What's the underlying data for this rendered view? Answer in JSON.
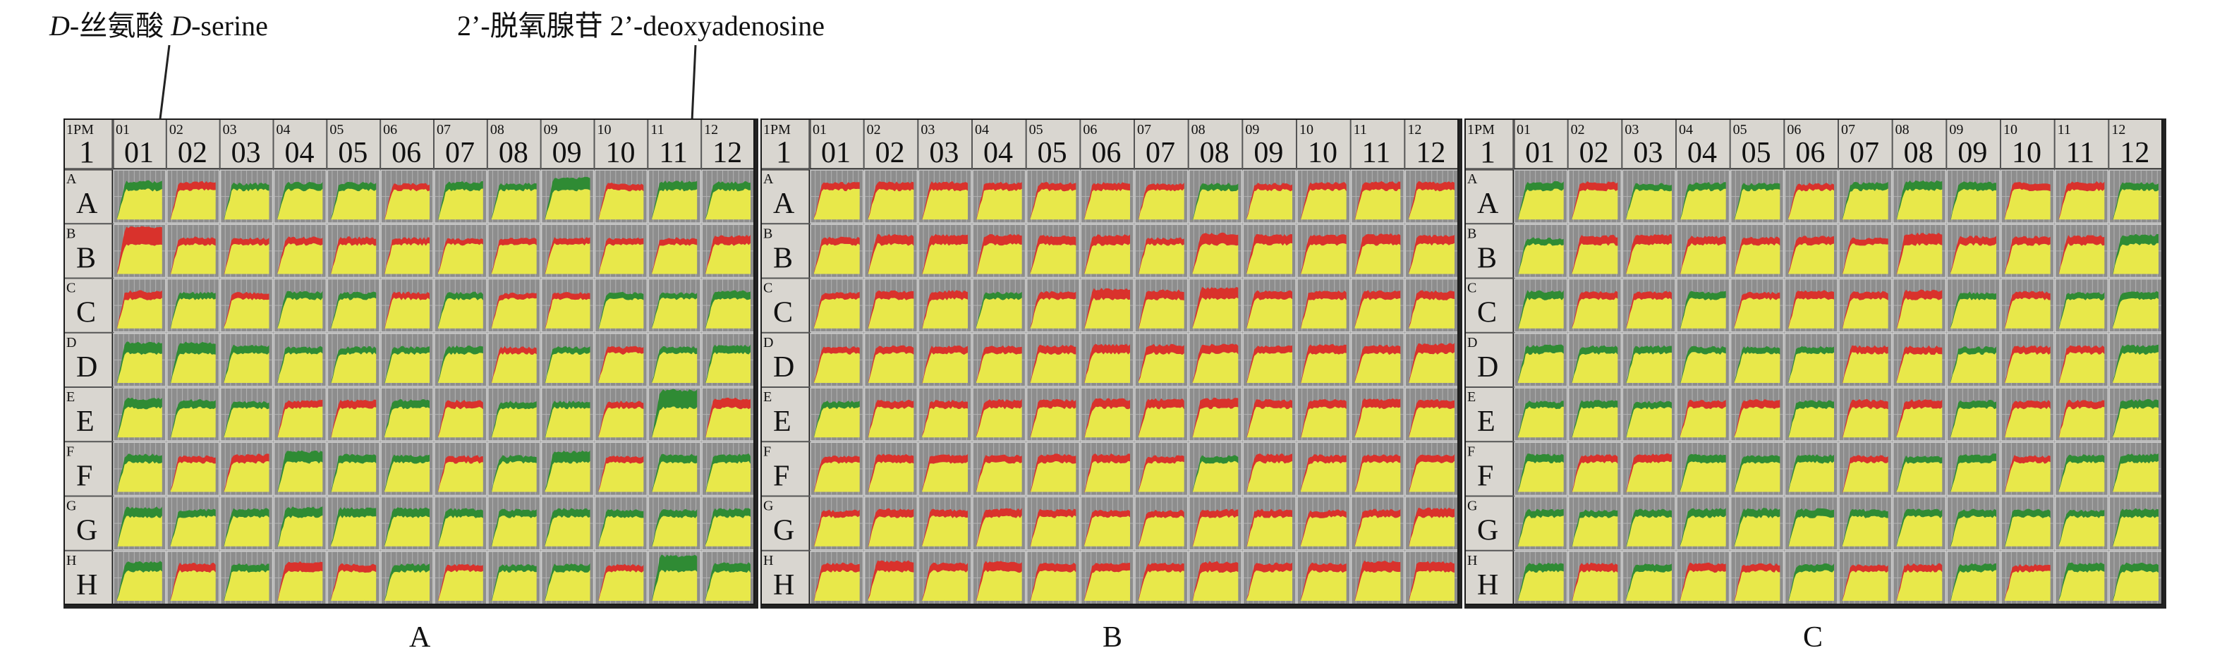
{
  "figure": {
    "annotations": [
      {
        "id": "d-serine",
        "italic_prefix": "D",
        "text": "-丝氨酸 ",
        "italic_prefix2": "D",
        "text2": "-serine",
        "plate": "A",
        "row": "B",
        "col": "01"
      },
      {
        "id": "deoxyadenosine",
        "text": "2’-脱氧腺苷 2’-deoxyadenosine",
        "plate": "A",
        "row": "E",
        "col": "11"
      }
    ],
    "corner": {
      "small": "1PM",
      "big": "1"
    },
    "columns": [
      {
        "small": "01",
        "big": "01"
      },
      {
        "small": "02",
        "big": "02"
      },
      {
        "small": "03",
        "big": "03"
      },
      {
        "small": "04",
        "big": "04"
      },
      {
        "small": "05",
        "big": "05"
      },
      {
        "small": "06",
        "big": "06"
      },
      {
        "small": "07",
        "big": "07"
      },
      {
        "small": "08",
        "big": "08"
      },
      {
        "small": "09",
        "big": "09"
      },
      {
        "small": "10",
        "big": "10"
      },
      {
        "small": "11",
        "big": "11"
      },
      {
        "small": "12",
        "big": "12"
      }
    ],
    "rows": [
      {
        "small": "A",
        "big": "A"
      },
      {
        "small": "B",
        "big": "B"
      },
      {
        "small": "C",
        "big": "C"
      },
      {
        "small": "D",
        "big": "D"
      },
      {
        "small": "E",
        "big": "E"
      },
      {
        "small": "F",
        "big": "F"
      },
      {
        "small": "G",
        "big": "G"
      },
      {
        "small": "H",
        "big": "H"
      }
    ],
    "colors": {
      "frame": "#d9d6d0",
      "cell_bg": "#8d8d8d",
      "gridline": "#b3b3b3",
      "common": "#e8e84a",
      "red": "#d9322c",
      "green": "#2f8b34",
      "border": "#1a1a1a"
    }
  },
  "chart_data": {
    "type": "heatmap",
    "description_of_encoding": "Phenotype MicroArray PM1 kinetic curves; yellow = shared signal, red band = higher in reference, green band = higher in comparison; value = relative band thickness (0-1), sign: positive red, negative green",
    "plates": [
      {
        "label": "A",
        "rows": [
          "A",
          "B",
          "C",
          "D",
          "E",
          "F",
          "G",
          "H"
        ],
        "cols": [
          "01",
          "02",
          "03",
          "04",
          "05",
          "06",
          "07",
          "08",
          "09",
          "10",
          "11",
          "12"
        ],
        "values": [
          [
            -0.35,
            0.3,
            -0.2,
            -0.25,
            -0.25,
            0.2,
            -0.3,
            -0.2,
            -0.6,
            0.2,
            -0.35,
            -0.3
          ],
          [
            0.95,
            0.25,
            0.2,
            0.25,
            0.25,
            0.2,
            0.15,
            0.2,
            0.2,
            0.2,
            0.2,
            0.35
          ],
          [
            0.3,
            -0.2,
            0.2,
            -0.25,
            -0.2,
            0.2,
            -0.2,
            0.15,
            0.2,
            -0.2,
            -0.15,
            -0.3
          ],
          [
            -0.5,
            -0.5,
            -0.3,
            -0.2,
            -0.2,
            -0.2,
            -0.25,
            0.2,
            -0.2,
            0.2,
            -0.2,
            -0.3
          ],
          [
            -0.4,
            -0.3,
            -0.2,
            0.25,
            0.3,
            -0.3,
            0.25,
            -0.2,
            -0.2,
            0.2,
            -0.95,
            0.4
          ],
          [
            -0.3,
            0.2,
            0.3,
            -0.5,
            -0.3,
            -0.25,
            0.2,
            -0.2,
            -0.5,
            0.2,
            -0.3,
            -0.3
          ],
          [
            -0.4,
            -0.25,
            -0.3,
            -0.4,
            -0.35,
            -0.35,
            -0.3,
            -0.25,
            -0.3,
            -0.25,
            -0.25,
            -0.3
          ],
          [
            -0.4,
            0.3,
            -0.25,
            0.4,
            0.25,
            -0.25,
            0.2,
            -0.2,
            -0.25,
            0.2,
            -0.8,
            -0.35
          ]
        ]
      },
      {
        "label": "B",
        "rows": [
          "A",
          "B",
          "C",
          "D",
          "E",
          "F",
          "G",
          "H"
        ],
        "cols": [
          "01",
          "02",
          "03",
          "04",
          "05",
          "06",
          "07",
          "08",
          "09",
          "10",
          "11",
          "12"
        ],
        "values": [
          [
            0.25,
            0.3,
            0.3,
            0.25,
            0.25,
            0.25,
            0.2,
            -0.2,
            0.2,
            0.25,
            0.3,
            0.3
          ],
          [
            0.25,
            0.4,
            0.4,
            0.4,
            0.35,
            0.4,
            0.2,
            0.5,
            0.4,
            0.4,
            0.45,
            0.35
          ],
          [
            0.2,
            0.3,
            0.3,
            -0.2,
            0.25,
            0.45,
            0.35,
            0.5,
            0.3,
            0.3,
            0.3,
            0.3
          ],
          [
            0.2,
            0.25,
            0.25,
            0.25,
            0.3,
            0.35,
            0.35,
            0.35,
            0.25,
            0.35,
            0.3,
            0.4
          ],
          [
            -0.2,
            0.25,
            0.25,
            0.3,
            0.3,
            0.35,
            0.35,
            0.4,
            0.3,
            0.3,
            0.35,
            0.3
          ],
          [
            0.2,
            0.3,
            0.3,
            0.25,
            0.3,
            0.3,
            0.2,
            -0.2,
            0.3,
            0.25,
            0.25,
            0.25
          ],
          [
            0.2,
            0.3,
            0.25,
            0.3,
            0.25,
            0.2,
            0.2,
            0.25,
            0.25,
            0.2,
            0.25,
            0.35
          ],
          [
            0.3,
            0.45,
            0.3,
            0.4,
            0.3,
            0.3,
            0.3,
            0.4,
            0.3,
            0.3,
            0.45,
            0.4
          ]
        ]
      },
      {
        "label": "C",
        "rows": [
          "A",
          "B",
          "C",
          "D",
          "E",
          "F",
          "G",
          "H"
        ],
        "cols": [
          "01",
          "02",
          "03",
          "04",
          "05",
          "06",
          "07",
          "08",
          "09",
          "10",
          "11",
          "12"
        ],
        "values": [
          [
            -0.3,
            0.3,
            -0.2,
            -0.25,
            -0.2,
            0.2,
            -0.25,
            -0.35,
            -0.3,
            0.25,
            0.3,
            -0.25
          ],
          [
            -0.2,
            0.35,
            0.4,
            0.3,
            0.25,
            0.3,
            0.2,
            0.5,
            0.3,
            0.3,
            0.35,
            -0.4
          ],
          [
            -0.3,
            0.25,
            0.25,
            -0.25,
            0.2,
            0.3,
            0.25,
            0.35,
            -0.2,
            0.25,
            -0.2,
            -0.25
          ],
          [
            -0.3,
            -0.25,
            -0.25,
            -0.2,
            -0.2,
            -0.2,
            0.25,
            0.25,
            -0.2,
            0.25,
            0.25,
            -0.3
          ],
          [
            -0.2,
            -0.25,
            -0.2,
            0.25,
            0.3,
            -0.25,
            0.3,
            0.3,
            -0.25,
            0.25,
            0.25,
            -0.3
          ],
          [
            -0.3,
            0.25,
            0.3,
            -0.3,
            -0.25,
            -0.25,
            0.2,
            -0.2,
            -0.3,
            0.2,
            -0.25,
            -0.3
          ],
          [
            -0.25,
            -0.2,
            -0.25,
            -0.3,
            -0.3,
            -0.3,
            -0.25,
            -0.25,
            -0.25,
            -0.25,
            -0.2,
            -0.3
          ],
          [
            -0.3,
            0.3,
            -0.25,
            0.3,
            0.25,
            -0.25,
            0.2,
            0.25,
            -0.25,
            0.2,
            -0.3,
            -0.3
          ]
        ]
      }
    ]
  }
}
